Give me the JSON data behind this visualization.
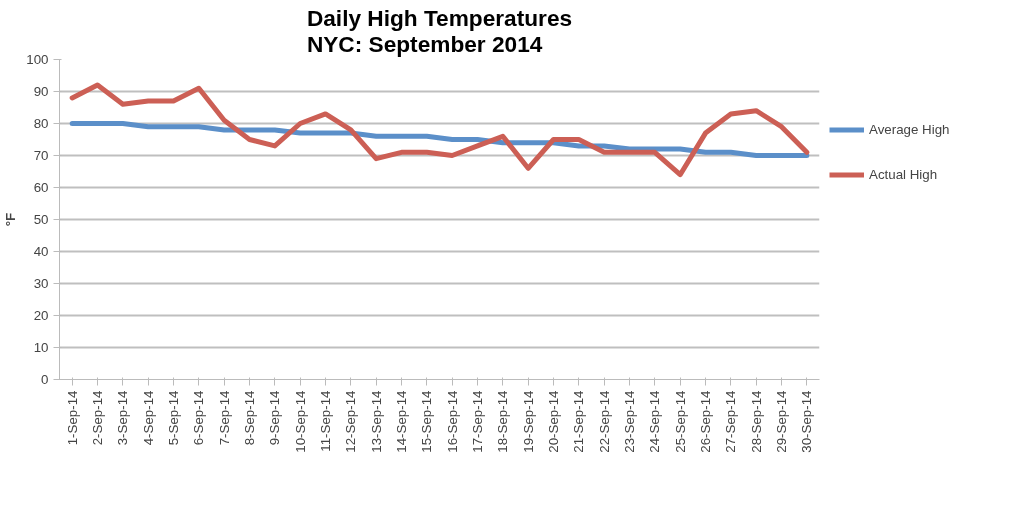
{
  "chart_data": {
    "type": "line",
    "title": "Daily High Temperatures\nNYC: September 2014",
    "ylabel": "°F",
    "categories": [
      "1-Sep-14",
      "2-Sep-14",
      "3-Sep-14",
      "4-Sep-14",
      "5-Sep-14",
      "6-Sep-14",
      "7-Sep-14",
      "8-Sep-14",
      "9-Sep-14",
      "10-Sep-14",
      "11-Sep-14",
      "12-Sep-14",
      "13-Sep-14",
      "14-Sep-14",
      "15-Sep-14",
      "16-Sep-14",
      "17-Sep-14",
      "18-Sep-14",
      "19-Sep-14",
      "20-Sep-14",
      "21-Sep-14",
      "22-Sep-14",
      "23-Sep-14",
      "24-Sep-14",
      "25-Sep-14",
      "26-Sep-14",
      "27-Sep-14",
      "28-Sep-14",
      "29-Sep-14",
      "30-Sep-14"
    ],
    "series": [
      {
        "name": "Average High",
        "color": "#5b8fc9",
        "values": [
          80,
          80,
          80,
          79,
          79,
          79,
          78,
          78,
          78,
          77,
          77,
          77,
          76,
          76,
          76,
          75,
          75,
          74,
          74,
          74,
          73,
          73,
          72,
          72,
          72,
          71,
          71,
          70,
          70,
          70
        ]
      },
      {
        "name": "Actual High",
        "color": "#cc5f55",
        "values": [
          88,
          92,
          86,
          87,
          87,
          91,
          81,
          75,
          73,
          80,
          83,
          78,
          69,
          71,
          71,
          70,
          73,
          76,
          66,
          75,
          75,
          71,
          71,
          71,
          64,
          77,
          83,
          84,
          79,
          71
        ]
      }
    ],
    "ylim": [
      0,
      100
    ],
    "yticks": [
      0,
      10,
      20,
      30,
      40,
      50,
      60,
      70,
      80,
      90,
      100
    ],
    "grid": "y",
    "legend": "right",
    "marker": "none",
    "line_style": "solid"
  }
}
